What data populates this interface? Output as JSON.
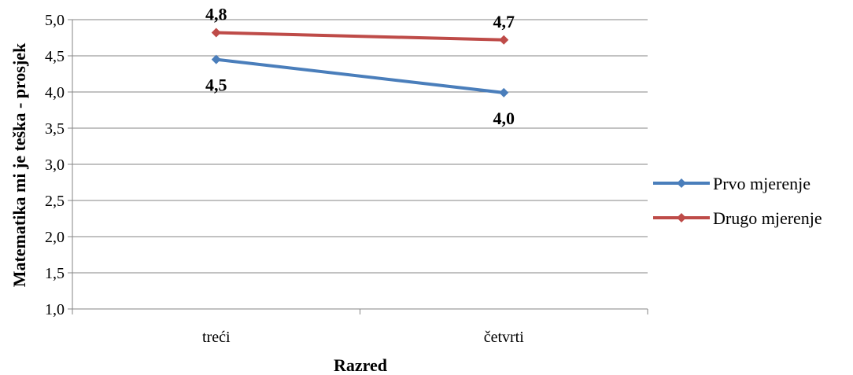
{
  "chart_data": {
    "type": "line",
    "categories": [
      "treći",
      "četvrti"
    ],
    "series": [
      {
        "name": "Prvo mjerenje",
        "values": [
          4.45,
          3.99
        ],
        "labels": [
          "4,5",
          "4,0"
        ],
        "color": "#4a7ebb"
      },
      {
        "name": "Drugo mjerenje",
        "values": [
          4.82,
          4.72
        ],
        "labels": [
          "4,8",
          "4,7"
        ],
        "color": "#be4b48"
      }
    ],
    "xlabel": "Razred",
    "ylabel": "Matematika mi je teška - prosjek",
    "ylim": [
      1.0,
      5.0
    ],
    "yticks": [
      "1,0",
      "1,5",
      "2,0",
      "2,5",
      "3,0",
      "3,5",
      "4,0",
      "4,5",
      "5,0"
    ],
    "ytick_values": [
      1.0,
      1.5,
      2.0,
      2.5,
      3.0,
      3.5,
      4.0,
      4.5,
      5.0
    ],
    "grid": true,
    "legend_position": "right",
    "gridline_color": "#868686"
  }
}
